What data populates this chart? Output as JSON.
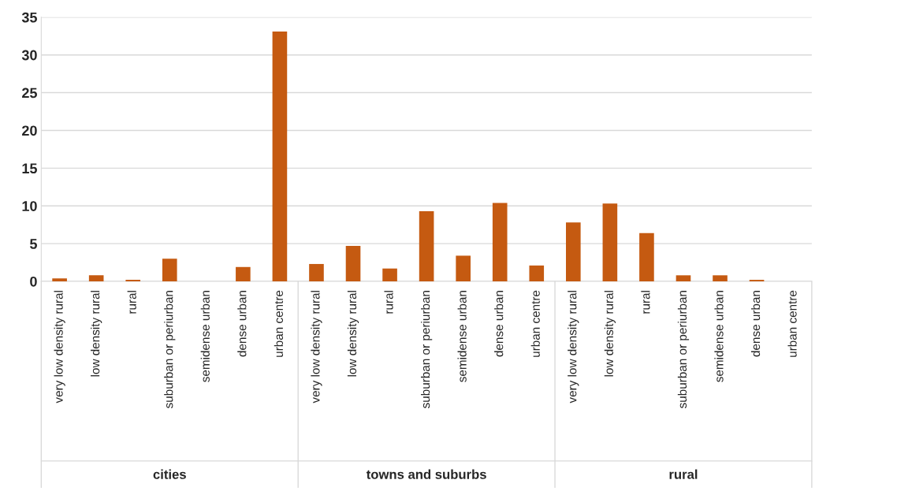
{
  "chart_data": {
    "type": "bar",
    "categories": [
      "very low density rural",
      "low density rural",
      "rural",
      "suburban or periurban",
      "semidense urban",
      "dense urban",
      "urban centre",
      "very low density rural",
      "low density rural",
      "rural",
      "suburban or periurban",
      "semidense urban",
      "dense urban",
      "urban centre",
      "very low density rural",
      "low density rural",
      "rural",
      "suburban or periurban",
      "semidense urban",
      "dense urban",
      "urban centre"
    ],
    "values": [
      0.4,
      0.8,
      0.2,
      3.0,
      0,
      1.9,
      33.1,
      2.3,
      4.7,
      1.7,
      9.3,
      3.4,
      10.4,
      2.1,
      7.8,
      10.3,
      6.4,
      0.8,
      0.8,
      0.2,
      0
    ],
    "color": "#c55a11",
    "ylim": [
      0,
      35
    ],
    "yticks": [
      0,
      5,
      10,
      15,
      20,
      25,
      30,
      35
    ],
    "grid": "y",
    "annotations": [
      "cities",
      "towns and suburbs",
      "rural"
    ]
  }
}
